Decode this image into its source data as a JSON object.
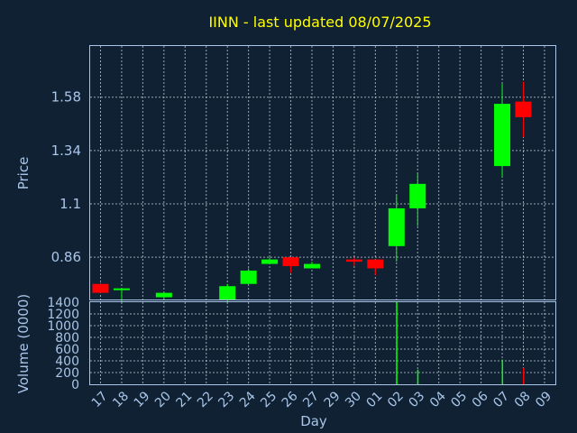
{
  "colors": {
    "background": "#0f2133",
    "text": "#a9c5e8",
    "title": "#ffff00",
    "up": "#00ff00",
    "down": "#ff0000"
  },
  "chart_data": [
    {
      "type": "candlestick",
      "title": "IINN - last updated 08/07/2025",
      "ylabel": "Price",
      "grid": true,
      "yticks": [
        "0.86",
        "1.1",
        "1.34",
        "1.58"
      ],
      "ylim": [
        0.67,
        1.81
      ],
      "candles": [
        {
          "x": "17",
          "open": 0.74,
          "high": 0.75,
          "low": 0.7,
          "close": 0.7
        },
        {
          "x": "18",
          "open": 0.72,
          "high": 0.72,
          "low": 0.66,
          "close": 0.72
        },
        {
          "x": "20",
          "open": 0.68,
          "high": 0.7,
          "low": 0.67,
          "close": 0.7
        },
        {
          "x": "23",
          "open": 0.67,
          "high": 0.74,
          "low": 0.66,
          "close": 0.73
        },
        {
          "x": "24",
          "open": 0.74,
          "high": 0.81,
          "low": 0.74,
          "close": 0.8
        },
        {
          "x": "25",
          "open": 0.83,
          "high": 0.86,
          "low": 0.83,
          "close": 0.85
        },
        {
          "x": "26",
          "open": 0.86,
          "high": 0.86,
          "low": 0.79,
          "close": 0.82
        },
        {
          "x": "27",
          "open": 0.81,
          "high": 0.84,
          "low": 0.81,
          "close": 0.83
        },
        {
          "x": "30",
          "open": 0.85,
          "high": 0.86,
          "low": 0.82,
          "close": 0.84
        },
        {
          "x": "01",
          "open": 0.85,
          "high": 0.85,
          "low": 0.78,
          "close": 0.81
        },
        {
          "x": "02",
          "open": 0.91,
          "high": 1.14,
          "low": 0.84,
          "close": 1.08
        },
        {
          "x": "03",
          "open": 1.08,
          "high": 1.24,
          "low": 1.0,
          "close": 1.19
        },
        {
          "x": "07",
          "open": 1.27,
          "high": 1.64,
          "low": 1.22,
          "close": 1.55
        },
        {
          "x": "08",
          "open": 1.56,
          "high": 1.65,
          "low": 1.4,
          "close": 1.49
        }
      ]
    },
    {
      "type": "bar",
      "ylabel": "Volume (0000)",
      "xlabel": "Day",
      "grid": true,
      "ylim": [
        0,
        1400
      ],
      "yticks": [
        "0",
        "200",
        "400",
        "600",
        "800",
        "1000",
        "1200",
        "1400"
      ],
      "categories": [
        "17",
        "18",
        "19",
        "20",
        "21",
        "22",
        "23",
        "24",
        "25",
        "26",
        "27",
        "29",
        "30",
        "01",
        "02",
        "03",
        "04",
        "05",
        "06",
        "07",
        "08",
        "09"
      ],
      "volumes": [
        {
          "x": "02",
          "value": 1400,
          "color": "up"
        },
        {
          "x": "03",
          "value": 250,
          "color": "up"
        },
        {
          "x": "07",
          "value": 420,
          "color": "up"
        },
        {
          "x": "08",
          "value": 280,
          "color": "down"
        }
      ]
    }
  ]
}
